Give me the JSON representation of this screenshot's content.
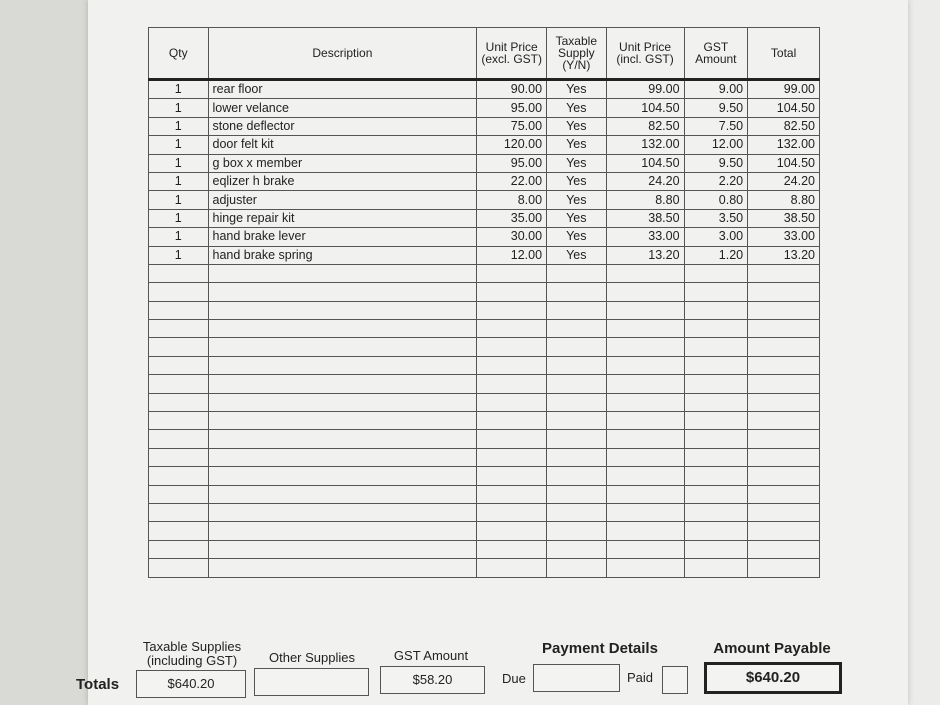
{
  "table": {
    "headers": [
      "Qty",
      "Description",
      "Unit Price (excl. GST)",
      "Taxable Supply (Y/N)",
      "Unit Price (incl. GST)",
      "GST Amount",
      "Total"
    ],
    "rows": [
      [
        "1",
        "rear floor",
        "90.00",
        "Yes",
        "99.00",
        "9.00",
        "99.00"
      ],
      [
        "1",
        "lower velance",
        "95.00",
        "Yes",
        "104.50",
        "9.50",
        "104.50"
      ],
      [
        "1",
        "stone deflector",
        "75.00",
        "Yes",
        "82.50",
        "7.50",
        "82.50"
      ],
      [
        "1",
        "door felt kit",
        "120.00",
        "Yes",
        "132.00",
        "12.00",
        "132.00"
      ],
      [
        "1",
        "g box x member",
        "95.00",
        "Yes",
        "104.50",
        "9.50",
        "104.50"
      ],
      [
        "1",
        "eqlizer h brake",
        "22.00",
        "Yes",
        "24.20",
        "2.20",
        "24.20"
      ],
      [
        "1",
        "adjuster",
        "8.00",
        "Yes",
        "8.80",
        "0.80",
        "8.80"
      ],
      [
        "1",
        "hinge repair kit",
        "35.00",
        "Yes",
        "38.50",
        "3.50",
        "38.50"
      ],
      [
        "1",
        "hand brake lever",
        "30.00",
        "Yes",
        "33.00",
        "3.00",
        "33.00"
      ],
      [
        "1",
        "hand brake spring",
        "12.00",
        "Yes",
        "13.20",
        "1.20",
        "13.20"
      ]
    ]
  },
  "totals": {
    "label": "Totals",
    "taxable_label": "Taxable Supplies (including GST)",
    "taxable_value": "$640.20",
    "other_label": "Other Supplies",
    "other_value": "",
    "gst_label": "GST Amount",
    "gst_value": "$58.20",
    "payment_label": "Payment Details",
    "due_label": "Due",
    "due_value": "",
    "paid_label": "Paid",
    "amount_label": "Amount Payable",
    "amount_value": "$640.20"
  }
}
